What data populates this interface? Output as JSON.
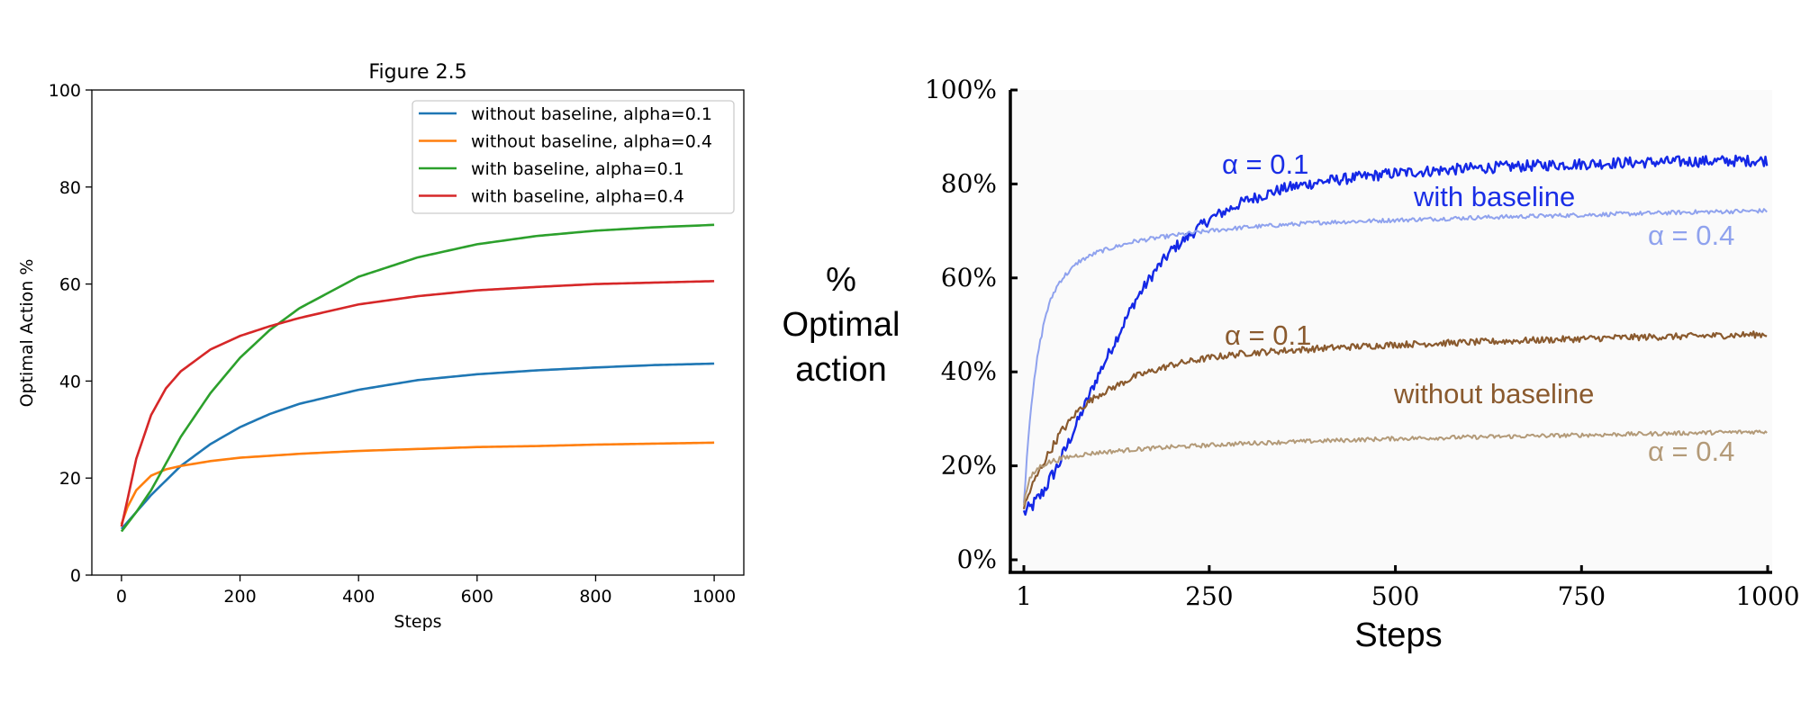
{
  "chart_data": [
    {
      "type": "line",
      "title": "Figure 2.5",
      "xlabel": "Steps",
      "ylabel": "Optimal Action %",
      "xlim": [
        -50,
        1050
      ],
      "ylim": [
        0,
        100
      ],
      "xticks": [
        0,
        200,
        400,
        600,
        800,
        1000
      ],
      "yticks": [
        0,
        20,
        40,
        60,
        80,
        100
      ],
      "legend_position": "top-right",
      "series": [
        {
          "name": "without baseline, alpha=0.1",
          "color": "#1f77b4",
          "x": [
            0,
            25,
            50,
            75,
            100,
            150,
            200,
            250,
            300,
            400,
            500,
            600,
            700,
            800,
            900,
            1000
          ],
          "y": [
            9.5,
            13,
            16.5,
            19.5,
            22.5,
            27,
            30.5,
            33.2,
            35.3,
            38.2,
            40.2,
            41.4,
            42.2,
            42.8,
            43.3,
            43.6
          ]
        },
        {
          "name": "without baseline, alpha=0.4",
          "color": "#ff7f0e",
          "x": [
            0,
            10,
            25,
            50,
            75,
            100,
            150,
            200,
            300,
            400,
            500,
            600,
            700,
            800,
            900,
            1000
          ],
          "y": [
            10.5,
            14,
            17.5,
            20.5,
            21.8,
            22.5,
            23.5,
            24.2,
            25,
            25.6,
            26,
            26.4,
            26.6,
            26.9,
            27.1,
            27.3
          ]
        },
        {
          "name": "with baseline, alpha=0.1",
          "color": "#2ca02c",
          "x": [
            0,
            25,
            50,
            75,
            100,
            150,
            200,
            250,
            300,
            400,
            500,
            600,
            700,
            800,
            900,
            1000
          ],
          "y": [
            9,
            13,
            17.5,
            23,
            28.5,
            37.5,
            44.8,
            50.5,
            55,
            61.5,
            65.5,
            68.2,
            69.9,
            71,
            71.7,
            72.2
          ]
        },
        {
          "name": "with baseline, alpha=0.4",
          "color": "#d62728",
          "x": [
            0,
            10,
            25,
            50,
            75,
            100,
            150,
            200,
            250,
            300,
            400,
            500,
            600,
            700,
            800,
            900,
            1000
          ],
          "y": [
            10,
            15.5,
            24,
            33,
            38.5,
            42,
            46.5,
            49.3,
            51.3,
            53,
            55.8,
            57.5,
            58.7,
            59.4,
            60,
            60.3,
            60.6
          ]
        }
      ]
    },
    {
      "type": "line",
      "title": "",
      "xlabel": "Steps",
      "ylabel": "% Optimal action",
      "xlim": [
        1,
        1000
      ],
      "ylim": [
        0,
        100
      ],
      "xticks": [
        "1",
        "250",
        "500",
        "750",
        "1000"
      ],
      "xtick_values": [
        1,
        250,
        500,
        750,
        1000
      ],
      "yticks": [
        "0%",
        "20%",
        "40%",
        "60%",
        "80%",
        "100%"
      ],
      "ytick_values": [
        0,
        20,
        40,
        60,
        80,
        100
      ],
      "annotations": [
        {
          "text": "α = 0.1",
          "color": "#1a2ee6"
        },
        {
          "text": "with baseline",
          "color": "#1a2ee6"
        },
        {
          "text": "α = 0.4",
          "color": "#8fa2ee"
        },
        {
          "text": "α = 0.1",
          "color": "#8a5a2e"
        },
        {
          "text": "without baseline",
          "color": "#8a5a2e"
        },
        {
          "text": "α = 0.4",
          "color": "#b39a78"
        }
      ],
      "series": [
        {
          "name": "with baseline, α = 0.1",
          "color": "#1428e6",
          "x": [
            1,
            10,
            25,
            50,
            75,
            100,
            125,
            150,
            175,
            200,
            250,
            300,
            350,
            400,
            500,
            600,
            700,
            800,
            900,
            1000
          ],
          "y": [
            10,
            11,
            14,
            21,
            30,
            39,
            47,
            55,
            61,
            66,
            72.5,
            76.5,
            79,
            80.5,
            82.3,
            83.3,
            84,
            84.5,
            84.8,
            85
          ]
        },
        {
          "name": "with baseline, α = 0.4",
          "color": "#8fa2ee",
          "x": [
            1,
            5,
            10,
            20,
            30,
            40,
            50,
            75,
            100,
            150,
            200,
            250,
            300,
            400,
            500,
            600,
            700,
            800,
            900,
            1000
          ],
          "y": [
            12,
            22,
            32,
            44,
            52,
            56.5,
            59.5,
            63.5,
            65.5,
            67.8,
            69,
            70,
            70.8,
            71.8,
            72.3,
            72.8,
            73.2,
            73.6,
            74,
            74.3
          ]
        },
        {
          "name": "without baseline, α = 0.1",
          "color": "#8a5a2e",
          "x": [
            1,
            10,
            25,
            50,
            75,
            100,
            150,
            200,
            250,
            300,
            400,
            500,
            600,
            700,
            800,
            900,
            1000
          ],
          "y": [
            11,
            15,
            20,
            27,
            32,
            35,
            39,
            41.5,
            43,
            44,
            45,
            45.8,
            46.3,
            46.8,
            47.3,
            47.6,
            48
          ]
        },
        {
          "name": "without baseline, α = 0.4",
          "color": "#b39a78",
          "x": [
            1,
            5,
            10,
            20,
            30,
            50,
            75,
            100,
            150,
            200,
            300,
            400,
            500,
            600,
            700,
            800,
            900,
            1000
          ],
          "y": [
            12,
            15,
            17.5,
            19.5,
            20.5,
            21.5,
            22.3,
            22.8,
            23.5,
            24,
            24.8,
            25.3,
            25.8,
            26.1,
            26.4,
            26.7,
            27,
            27.3
          ]
        }
      ]
    }
  ]
}
